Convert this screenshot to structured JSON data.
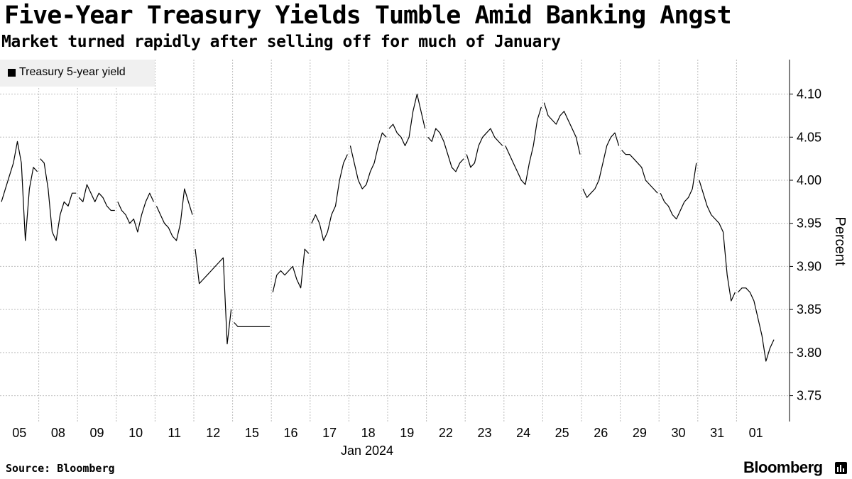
{
  "header": {
    "title": "Five-Year Treasury Yields Tumble Amid Banking Angst",
    "subtitle": "Market turned rapidly after selling off for much of January"
  },
  "legend": {
    "label": "Treasury 5-year yield"
  },
  "footer": {
    "source": "Source: Bloomberg",
    "brand": "Bloomberg",
    "brand_icon": "bloomberg-terminal-icon"
  },
  "colors": {
    "line": "#000000",
    "grid": "#bdbdbd",
    "legend_bg": "#f0f0f0"
  },
  "chart_data": {
    "type": "line",
    "title": "Five-Year Treasury Yields Tumble Amid Banking Angst",
    "subtitle": "Market turned rapidly after selling off for much of January",
    "ylabel": "Percent",
    "xlabel": "Jan 2024",
    "categories": [
      "05",
      "08",
      "09",
      "10",
      "11",
      "12",
      "15",
      "16",
      "17",
      "18",
      "19",
      "22",
      "23",
      "24",
      "25",
      "26",
      "29",
      "30",
      "31",
      "01"
    ],
    "ylim": [
      3.72,
      4.14
    ],
    "yticks": [
      "3.75",
      "3.80",
      "3.85",
      "3.90",
      "3.95",
      "4.00",
      "4.05",
      "4.10"
    ],
    "grid": true,
    "legend_position": "top-left",
    "series": [
      {
        "name": "Treasury 5-year yield",
        "values": [
          [
            3.975,
            3.99,
            4.005,
            4.02,
            4.045,
            4.02,
            3.93,
            3.99,
            4.015,
            4.01
          ],
          [
            4.025,
            4.02,
            3.99,
            3.94,
            3.93,
            3.96,
            3.975,
            3.97,
            3.985,
            3.985
          ],
          [
            3.98,
            3.975,
            3.995,
            3.985,
            3.975,
            3.985,
            3.98,
            3.97,
            3.965,
            3.965
          ],
          [
            3.975,
            3.965,
            3.96,
            3.95,
            3.955,
            3.94,
            3.96,
            3.975,
            3.985,
            3.975
          ],
          [
            3.97,
            3.96,
            3.95,
            3.945,
            3.935,
            3.93,
            3.95,
            3.99,
            3.975,
            3.96
          ],
          [
            3.92,
            3.88,
            3.885,
            3.89,
            3.895,
            3.9,
            3.905,
            3.91,
            3.81,
            3.85
          ],
          [
            3.835,
            3.83,
            3.83,
            3.83,
            3.83,
            3.83,
            3.83,
            3.83,
            3.83,
            3.83
          ],
          [
            3.87,
            3.89,
            3.895,
            3.89,
            3.895,
            3.9,
            3.885,
            3.875,
            3.92,
            3.915
          ],
          [
            3.95,
            3.96,
            3.95,
            3.93,
            3.94,
            3.96,
            3.97,
            4.0,
            4.02,
            4.03
          ],
          [
            4.04,
            4.02,
            4.0,
            3.99,
            3.995,
            4.01,
            4.02,
            4.04,
            4.055,
            4.05
          ],
          [
            4.06,
            4.065,
            4.055,
            4.05,
            4.04,
            4.05,
            4.08,
            4.1,
            4.08,
            4.06
          ],
          [
            4.05,
            4.045,
            4.06,
            4.055,
            4.045,
            4.03,
            4.015,
            4.01,
            4.02,
            4.025
          ],
          [
            4.03,
            4.015,
            4.02,
            4.04,
            4.05,
            4.055,
            4.06,
            4.05,
            4.045,
            4.04
          ],
          [
            4.04,
            4.03,
            4.02,
            4.01,
            4.0,
            3.995,
            4.02,
            4.04,
            4.07,
            4.085
          ],
          [
            4.09,
            4.075,
            4.07,
            4.065,
            4.075,
            4.08,
            4.07,
            4.06,
            4.05,
            4.03
          ],
          [
            3.99,
            3.98,
            3.985,
            3.99,
            4.0,
            4.02,
            4.04,
            4.05,
            4.055,
            4.04
          ],
          [
            4.035,
            4.03,
            4.03,
            4.025,
            4.02,
            4.015,
            4.0,
            3.995,
            3.99,
            3.985
          ],
          [
            3.985,
            3.975,
            3.97,
            3.96,
            3.955,
            3.965,
            3.975,
            3.98,
            3.99,
            4.02
          ],
          [
            4.0,
            3.985,
            3.97,
            3.96,
            3.955,
            3.95,
            3.94,
            3.89,
            3.86,
            3.87
          ],
          [
            3.87,
            3.875,
            3.875,
            3.87,
            3.86,
            3.84,
            3.82,
            3.79,
            3.805,
            3.815
          ]
        ]
      }
    ]
  }
}
